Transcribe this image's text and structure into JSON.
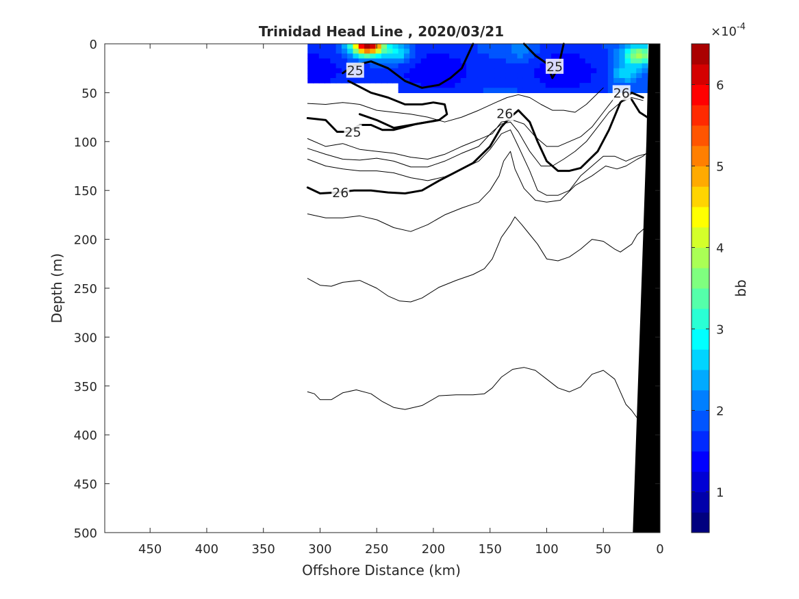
{
  "chart_data": {
    "type": "heatmap",
    "title": "Trinidad Head Line , 2020/03/21",
    "xlabel": "Offshore Distance (km)",
    "ylabel": "Depth (m)",
    "xlim": [
      490,
      0
    ],
    "ylim": [
      0,
      500
    ],
    "x_reversed": true,
    "y_reversed": true,
    "x_ticks": [
      450,
      400,
      350,
      300,
      250,
      200,
      150,
      100,
      50,
      0
    ],
    "x_tick_labels": [
      "450",
      "400",
      "350",
      "300",
      "250",
      "200",
      "150",
      "100",
      "50",
      "0"
    ],
    "y_ticks": [
      0,
      50,
      100,
      150,
      200,
      250,
      300,
      350,
      400,
      450,
      500
    ],
    "y_tick_labels": [
      "0",
      "50",
      "100",
      "150",
      "200",
      "250",
      "300",
      "350",
      "400",
      "450",
      "500"
    ],
    "colorbar": {
      "label": "bb",
      "exponent_label": "×10",
      "exponent": "-4",
      "range": [
        0.5,
        6.5
      ],
      "ticks": [
        1,
        2,
        3,
        4,
        5,
        6
      ],
      "tick_labels": [
        "1",
        "2",
        "3",
        "4",
        "5",
        "6"
      ],
      "colors": [
        "#00007f",
        "#0000aa",
        "#0000d4",
        "#0000ff",
        "#002aff",
        "#0055ff",
        "#007fff",
        "#00aaff",
        "#00d4ff",
        "#00ffff",
        "#2affd4",
        "#55ffaa",
        "#7fff7f",
        "#aaff55",
        "#d4ff2a",
        "#ffff00",
        "#ffd400",
        "#ffaa00",
        "#ff7f00",
        "#ff5500",
        "#ff2a00",
        "#ff0000",
        "#d40000",
        "#aa0000"
      ]
    },
    "bb_field": {
      "x_range": [
        311,
        11
      ],
      "depth_range": [
        0,
        50
      ],
      "background_value": 1.6,
      "hotspots": [
        {
          "x": 258,
          "depth": 2,
          "value": 6.2
        },
        {
          "x": 232,
          "depth": 10,
          "value": 2.6
        },
        {
          "x": 18,
          "depth": 12,
          "value": 3.8
        },
        {
          "x": 30,
          "depth": 30,
          "value": 2.6
        },
        {
          "x": 120,
          "depth": 8,
          "value": 2.0
        }
      ]
    },
    "contours": [
      {
        "level": "25",
        "bold": true,
        "x": [
          280,
          270,
          255,
          240,
          225,
          210,
          195,
          185,
          175,
          165
        ],
        "depth": [
          30,
          22,
          18,
          25,
          38,
          45,
          42,
          35,
          25,
          0
        ]
      },
      {
        "level": "25",
        "bold": true,
        "x": [
          120,
          110,
          100,
          95,
          90,
          85
        ],
        "depth": [
          0,
          12,
          20,
          35,
          25,
          0
        ]
      },
      {
        "level": "25",
        "bold": true,
        "x": [
          311,
          295,
          285,
          275,
          265,
          255,
          245,
          235,
          225,
          215,
          205,
          195
        ],
        "depth": [
          76,
          78,
          90,
          90,
          83,
          83,
          88,
          88,
          85,
          82,
          80,
          78
        ]
      },
      {
        "level": "25",
        "bold": true,
        "x": [
          275,
          255,
          240,
          225,
          210,
          200,
          190,
          188,
          195,
          215,
          235,
          250,
          265
        ],
        "depth": [
          38,
          50,
          55,
          62,
          62,
          60,
          62,
          72,
          78,
          82,
          86,
          78,
          72
        ]
      },
      {
        "level": "26",
        "bold": true,
        "x": [
          311,
          300,
          285,
          270,
          255,
          240,
          225,
          210,
          195,
          180,
          165,
          150,
          140,
          132,
          125,
          115,
          108,
          100,
          90,
          80,
          70,
          55,
          45,
          35,
          25,
          15
        ],
        "depth": [
          147,
          153,
          152,
          150,
          150,
          152,
          153,
          150,
          140,
          131,
          122,
          105,
          85,
          75,
          68,
          80,
          100,
          120,
          130,
          130,
          127,
          110,
          88,
          60,
          50,
          55
        ]
      },
      {
        "level": "",
        "bold": true,
        "x": [
          25,
          18,
          10
        ],
        "depth": [
          57,
          70,
          76
        ]
      },
      {
        "level": "",
        "bold": false,
        "x": [
          311,
          295,
          280,
          265,
          250,
          235,
          220,
          205,
          190,
          175,
          160,
          145,
          135,
          125,
          115,
          105,
          95,
          85,
          75,
          65,
          50
        ],
        "depth": [
          61,
          62,
          60,
          62,
          68,
          70,
          72,
          75,
          80,
          75,
          68,
          60,
          55,
          52,
          55,
          62,
          68,
          68,
          70,
          62,
          45
        ]
      },
      {
        "level": "",
        "bold": false,
        "x": [
          311,
          295,
          280,
          265,
          250,
          235,
          220,
          205,
          190,
          175,
          160,
          148,
          140,
          130,
          120,
          110,
          100,
          90,
          80,
          70,
          60,
          50,
          40
        ],
        "depth": [
          97,
          105,
          102,
          108,
          110,
          112,
          116,
          118,
          113,
          105,
          98,
          92,
          80,
          78,
          82,
          95,
          105,
          105,
          100,
          95,
          85,
          70,
          55
        ]
      },
      {
        "level": "",
        "bold": false,
        "x": [
          311,
          295,
          280,
          265,
          250,
          235,
          220,
          205,
          190,
          175,
          160,
          148,
          140,
          132,
          125,
          115,
          105,
          95,
          85,
          75,
          65,
          55,
          45,
          35,
          25,
          15
        ],
        "depth": [
          107,
          113,
          118,
          119,
          117,
          120,
          126,
          126,
          120,
          112,
          105,
          90,
          82,
          80,
          90,
          110,
          125,
          125,
          118,
          110,
          100,
          85,
          70,
          60,
          55,
          58
        ]
      },
      {
        "level": "",
        "bold": false,
        "x": [
          311,
          295,
          280,
          265,
          250,
          235,
          220,
          205,
          190,
          175,
          160,
          150,
          140,
          132,
          125,
          115,
          108,
          100,
          90,
          80,
          70,
          60,
          50,
          40,
          30,
          20,
          10
        ],
        "depth": [
          118,
          125,
          128,
          130,
          130,
          132,
          137,
          140,
          136,
          128,
          120,
          108,
          92,
          88,
          105,
          130,
          150,
          155,
          155,
          150,
          135,
          125,
          115,
          115,
          120,
          115,
          112
        ]
      },
      {
        "level": "",
        "bold": false,
        "x": [
          311,
          295,
          280,
          265,
          250,
          235,
          220,
          205,
          190,
          175,
          160,
          150,
          142,
          138,
          132,
          128,
          120,
          110,
          100,
          88,
          75,
          60,
          48,
          38,
          30,
          20,
          15,
          12
        ],
        "depth": [
          174,
          178,
          178,
          176,
          180,
          188,
          192,
          185,
          175,
          168,
          162,
          150,
          135,
          120,
          110,
          128,
          148,
          160,
          162,
          160,
          145,
          135,
          125,
          128,
          125,
          118,
          115,
          112
        ]
      },
      {
        "level": "",
        "bold": false,
        "x": [
          311,
          300,
          290,
          280,
          265,
          250,
          240,
          230,
          220,
          210,
          195,
          180,
          165,
          155,
          148,
          140,
          132,
          128,
          122,
          115,
          108,
          100,
          90,
          80,
          70,
          60,
          50,
          40,
          35,
          25,
          20,
          15,
          12
        ],
        "depth": [
          240,
          247,
          248,
          244,
          242,
          250,
          258,
          263,
          264,
          260,
          249,
          242,
          236,
          230,
          220,
          198,
          185,
          177,
          185,
          195,
          205,
          220,
          222,
          218,
          210,
          200,
          202,
          210,
          213,
          205,
          195,
          190,
          187
        ]
      },
      {
        "level": "",
        "bold": false,
        "x": [
          311,
          305,
          300,
          290,
          280,
          268,
          255,
          245,
          235,
          225,
          210,
          195,
          180,
          165,
          155,
          148,
          140,
          130,
          120,
          110,
          100,
          90,
          80,
          70,
          60,
          50,
          40,
          35,
          30,
          25,
          20
        ],
        "depth": [
          356,
          358,
          364,
          364,
          357,
          354,
          358,
          366,
          372,
          374,
          370,
          360,
          359,
          359,
          358,
          352,
          341,
          333,
          331,
          334,
          343,
          352,
          356,
          351,
          338,
          334,
          343,
          356,
          369,
          375,
          383
        ]
      }
    ],
    "contour_labels": [
      {
        "text": "25",
        "x": 269,
        "depth": 27
      },
      {
        "text": "25",
        "x": 93,
        "depth": 23
      },
      {
        "text": "25",
        "x": 271,
        "depth": 90
      },
      {
        "text": "26",
        "x": 282,
        "depth": 152
      },
      {
        "text": "26",
        "x": 137,
        "depth": 71
      },
      {
        "text": "26",
        "x": 34,
        "depth": 50
      }
    ],
    "bathymetry": {
      "x": [
        24,
        21,
        18,
        15,
        12,
        10,
        0,
        0
      ],
      "depth": [
        500,
        400,
        300,
        200,
        100,
        0,
        0,
        500
      ]
    }
  }
}
